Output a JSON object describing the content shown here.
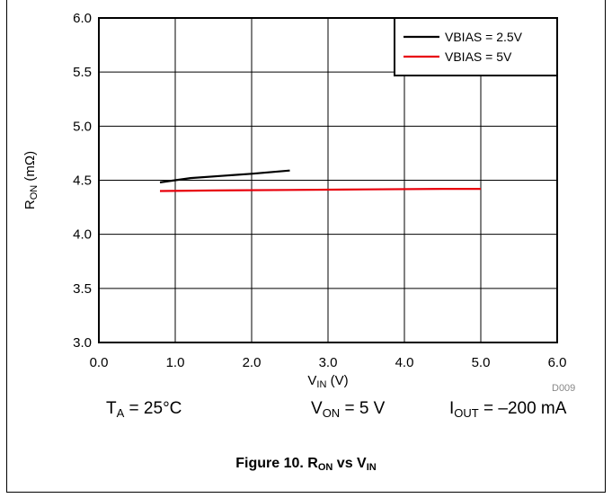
{
  "chart_data": {
    "type": "line",
    "xlabel": {
      "main": "V",
      "sub": "IN",
      "suffix": " (V)"
    },
    "ylabel": {
      "main": "R",
      "sub": "ON",
      "suffix": " (mΩ)"
    },
    "xlim": [
      0,
      6
    ],
    "ylim": [
      3.0,
      6.0
    ],
    "xticks": [
      "0.0",
      "1.0",
      "2.0",
      "3.0",
      "4.0",
      "5.0",
      "6.0"
    ],
    "yticks": [
      "3.0",
      "3.5",
      "4.0",
      "4.5",
      "5.0",
      "5.5",
      "6.0"
    ],
    "grid": true,
    "legend_position": "top-right",
    "series": [
      {
        "name": "VBIAS = 2.5V",
        "color": "#000000",
        "x": [
          0.8,
          1.2,
          1.6,
          2.0,
          2.5
        ],
        "y": [
          4.48,
          4.52,
          4.54,
          4.56,
          4.59
        ]
      },
      {
        "name": "VBIAS = 5V",
        "color": "#e8000b",
        "x": [
          0.8,
          1.5,
          2.5,
          3.5,
          4.5,
          5.0
        ],
        "y": [
          4.4,
          4.405,
          4.41,
          4.415,
          4.42,
          4.42
        ]
      }
    ]
  },
  "code": "D009",
  "conditions": {
    "ta": {
      "main": "T",
      "sub": "A",
      "rest": " = 25°C"
    },
    "von": {
      "main": "V",
      "sub": "ON",
      "rest": " = 5 V"
    },
    "iout": {
      "main": "I",
      "sub": "OUT",
      "rest": " = –200 mA"
    }
  },
  "caption": {
    "prefix": "Figure 10. R",
    "sub1": "ON",
    "mid": " vs V",
    "sub2": "IN"
  }
}
